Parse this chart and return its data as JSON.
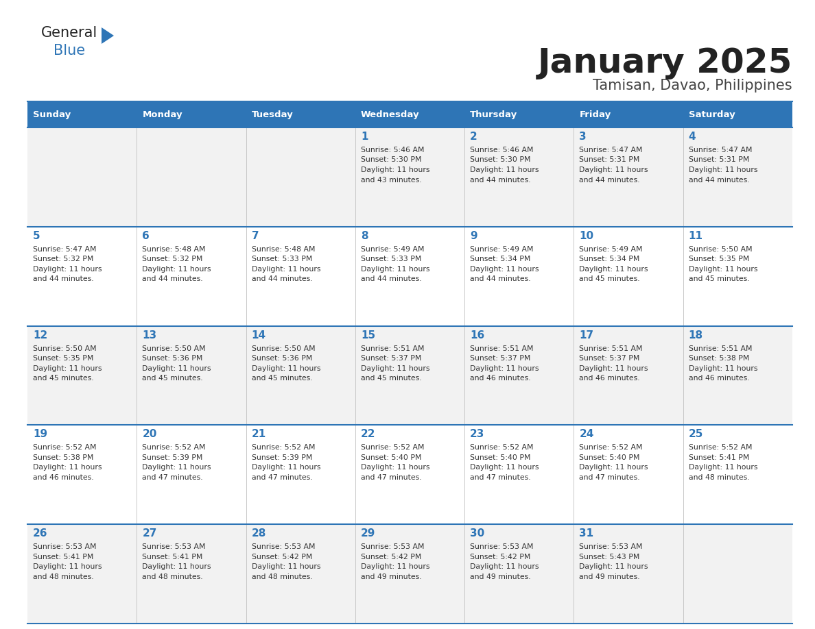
{
  "title": "January 2025",
  "subtitle": "Tamisan, Davao, Philippines",
  "days_of_week": [
    "Sunday",
    "Monday",
    "Tuesday",
    "Wednesday",
    "Thursday",
    "Friday",
    "Saturday"
  ],
  "header_bg": "#2e75b6",
  "header_text": "#ffffff",
  "row_bg_odd": "#f2f2f2",
  "row_bg_even": "#ffffff",
  "cell_border": "#2e75b6",
  "day_num_color": "#2e75b6",
  "info_color": "#333333",
  "title_color": "#222222",
  "subtitle_color": "#444444",
  "logo_general_color": "#222222",
  "logo_blue_color": "#2e75b6",
  "calendar": [
    [
      null,
      null,
      null,
      {
        "day": 1,
        "sunrise": "5:46 AM",
        "sunset": "5:30 PM",
        "daylight": "11 hours and 43 minutes"
      },
      {
        "day": 2,
        "sunrise": "5:46 AM",
        "sunset": "5:30 PM",
        "daylight": "11 hours and 44 minutes"
      },
      {
        "day": 3,
        "sunrise": "5:47 AM",
        "sunset": "5:31 PM",
        "daylight": "11 hours and 44 minutes"
      },
      {
        "day": 4,
        "sunrise": "5:47 AM",
        "sunset": "5:31 PM",
        "daylight": "11 hours and 44 minutes"
      }
    ],
    [
      {
        "day": 5,
        "sunrise": "5:47 AM",
        "sunset": "5:32 PM",
        "daylight": "11 hours and 44 minutes"
      },
      {
        "day": 6,
        "sunrise": "5:48 AM",
        "sunset": "5:32 PM",
        "daylight": "11 hours and 44 minutes"
      },
      {
        "day": 7,
        "sunrise": "5:48 AM",
        "sunset": "5:33 PM",
        "daylight": "11 hours and 44 minutes"
      },
      {
        "day": 8,
        "sunrise": "5:49 AM",
        "sunset": "5:33 PM",
        "daylight": "11 hours and 44 minutes"
      },
      {
        "day": 9,
        "sunrise": "5:49 AM",
        "sunset": "5:34 PM",
        "daylight": "11 hours and 44 minutes"
      },
      {
        "day": 10,
        "sunrise": "5:49 AM",
        "sunset": "5:34 PM",
        "daylight": "11 hours and 45 minutes"
      },
      {
        "day": 11,
        "sunrise": "5:50 AM",
        "sunset": "5:35 PM",
        "daylight": "11 hours and 45 minutes"
      }
    ],
    [
      {
        "day": 12,
        "sunrise": "5:50 AM",
        "sunset": "5:35 PM",
        "daylight": "11 hours and 45 minutes"
      },
      {
        "day": 13,
        "sunrise": "5:50 AM",
        "sunset": "5:36 PM",
        "daylight": "11 hours and 45 minutes"
      },
      {
        "day": 14,
        "sunrise": "5:50 AM",
        "sunset": "5:36 PM",
        "daylight": "11 hours and 45 minutes"
      },
      {
        "day": 15,
        "sunrise": "5:51 AM",
        "sunset": "5:37 PM",
        "daylight": "11 hours and 45 minutes"
      },
      {
        "day": 16,
        "sunrise": "5:51 AM",
        "sunset": "5:37 PM",
        "daylight": "11 hours and 46 minutes"
      },
      {
        "day": 17,
        "sunrise": "5:51 AM",
        "sunset": "5:37 PM",
        "daylight": "11 hours and 46 minutes"
      },
      {
        "day": 18,
        "sunrise": "5:51 AM",
        "sunset": "5:38 PM",
        "daylight": "11 hours and 46 minutes"
      }
    ],
    [
      {
        "day": 19,
        "sunrise": "5:52 AM",
        "sunset": "5:38 PM",
        "daylight": "11 hours and 46 minutes"
      },
      {
        "day": 20,
        "sunrise": "5:52 AM",
        "sunset": "5:39 PM",
        "daylight": "11 hours and 47 minutes"
      },
      {
        "day": 21,
        "sunrise": "5:52 AM",
        "sunset": "5:39 PM",
        "daylight": "11 hours and 47 minutes"
      },
      {
        "day": 22,
        "sunrise": "5:52 AM",
        "sunset": "5:40 PM",
        "daylight": "11 hours and 47 minutes"
      },
      {
        "day": 23,
        "sunrise": "5:52 AM",
        "sunset": "5:40 PM",
        "daylight": "11 hours and 47 minutes"
      },
      {
        "day": 24,
        "sunrise": "5:52 AM",
        "sunset": "5:40 PM",
        "daylight": "11 hours and 47 minutes"
      },
      {
        "day": 25,
        "sunrise": "5:52 AM",
        "sunset": "5:41 PM",
        "daylight": "11 hours and 48 minutes"
      }
    ],
    [
      {
        "day": 26,
        "sunrise": "5:53 AM",
        "sunset": "5:41 PM",
        "daylight": "11 hours and 48 minutes"
      },
      {
        "day": 27,
        "sunrise": "5:53 AM",
        "sunset": "5:41 PM",
        "daylight": "11 hours and 48 minutes"
      },
      {
        "day": 28,
        "sunrise": "5:53 AM",
        "sunset": "5:42 PM",
        "daylight": "11 hours and 48 minutes"
      },
      {
        "day": 29,
        "sunrise": "5:53 AM",
        "sunset": "5:42 PM",
        "daylight": "11 hours and 49 minutes"
      },
      {
        "day": 30,
        "sunrise": "5:53 AM",
        "sunset": "5:42 PM",
        "daylight": "11 hours and 49 minutes"
      },
      {
        "day": 31,
        "sunrise": "5:53 AM",
        "sunset": "5:43 PM",
        "daylight": "11 hours and 49 minutes"
      },
      null
    ]
  ]
}
